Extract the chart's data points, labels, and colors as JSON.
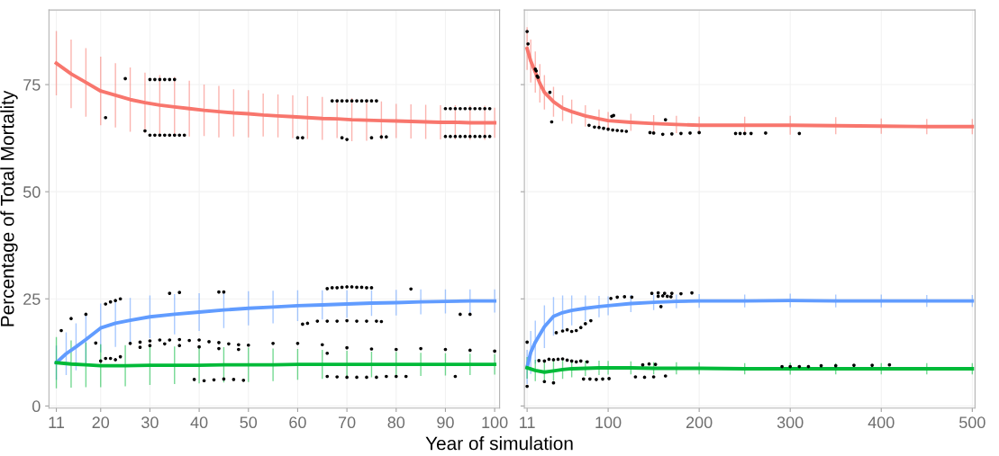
{
  "chart_data": [
    {
      "type": "line",
      "ylabel": "Percentage of Total Mortality",
      "xlabel": "Year of simulation",
      "xlim": [
        9.5,
        101
      ],
      "ylim": [
        -0.5,
        92.4
      ],
      "xticks": [
        11,
        20,
        30,
        40,
        50,
        60,
        70,
        80,
        90,
        100
      ],
      "yticks": [
        0,
        25,
        50,
        75
      ],
      "grid": true,
      "marker": "none",
      "line_style": "solid",
      "series": [
        {
          "color": "#f8766d",
          "x": [
            11,
            14,
            17,
            20,
            23,
            26,
            29,
            32,
            35,
            38,
            41,
            44,
            47,
            50,
            53,
            56,
            59,
            62,
            65,
            68,
            71,
            74,
            77,
            80,
            83,
            86,
            89,
            92,
            95,
            98,
            100
          ],
          "values": [
            80,
            77.5,
            75.5,
            73.5,
            72.5,
            71.5,
            70.8,
            70.2,
            69.8,
            69.4,
            69,
            68.7,
            68.4,
            68.2,
            67.9,
            67.7,
            67.5,
            67.3,
            67.1,
            67,
            66.8,
            66.7,
            66.6,
            66.5,
            66.4,
            66.3,
            66.2,
            66.2,
            66.1,
            66.1,
            66.1
          ],
          "errors": [
            7.5,
            8,
            8,
            8,
            7.5,
            7.5,
            7,
            7,
            7,
            6.5,
            6,
            6,
            5.5,
            5.5,
            5,
            5,
            5,
            5,
            5,
            4.5,
            5,
            4.8,
            4.5,
            4,
            4,
            4,
            4,
            4,
            4,
            4,
            3.5
          ]
        },
        {
          "color": "#619cff",
          "x": [
            11,
            13,
            15,
            17,
            20,
            23,
            26,
            30,
            35,
            40,
            45,
            50,
            55,
            60,
            65,
            70,
            75,
            80,
            85,
            90,
            95,
            100
          ],
          "values": [
            10.1,
            12.2,
            13.8,
            15.5,
            18.2,
            19.3,
            20,
            20.8,
            21.4,
            21.9,
            22.4,
            22.8,
            23.1,
            23.4,
            23.6,
            23.8,
            24,
            24.1,
            24.3,
            24.4,
            24.5,
            24.5
          ],
          "errors": [
            4,
            5,
            5.5,
            5.7,
            5.7,
            5.5,
            5.2,
            5,
            4.7,
            4.4,
            4.2,
            4,
            3.8,
            3.6,
            3.4,
            3.2,
            3,
            3,
            2.9,
            2.8,
            2.7,
            2.7
          ]
        },
        {
          "color": "#00ba38",
          "x": [
            11,
            14,
            17,
            20,
            25,
            30,
            35,
            40,
            45,
            50,
            55,
            60,
            65,
            70,
            75,
            80,
            85,
            90,
            95,
            100
          ],
          "values": [
            10.1,
            9.8,
            9.6,
            9.4,
            9.4,
            9.5,
            9.5,
            9.5,
            9.6,
            9.6,
            9.6,
            9.7,
            9.7,
            9.7,
            9.7,
            9.7,
            9.7,
            9.7,
            9.7,
            9.7
          ],
          "errors": [
            6,
            5.5,
            5.2,
            5,
            4.8,
            4.6,
            4.4,
            4.2,
            4.1,
            4,
            3.8,
            3.6,
            3.4,
            3.2,
            3,
            2.9,
            2.7,
            2.6,
            2.5,
            2.4
          ]
        },
        {
          "type": "scatter",
          "color": "#000000",
          "x": [
            21,
            25,
            30,
            31,
            32,
            33,
            34,
            35,
            29,
            30,
            31,
            32,
            33,
            34,
            35,
            36,
            37,
            67,
            68,
            69,
            70,
            71,
            72,
            73,
            74,
            75,
            76,
            90,
            91,
            92,
            93,
            94,
            95,
            96,
            97,
            98,
            99,
            90,
            91,
            92,
            93,
            94,
            95,
            96,
            97,
            98,
            99,
            60,
            61,
            69,
            70,
            75,
            77,
            78,
            12,
            14,
            17,
            21,
            22,
            23,
            24,
            34,
            36,
            44,
            45,
            66,
            67,
            68,
            69,
            70,
            71,
            72,
            73,
            74,
            75,
            83,
            61,
            62,
            64,
            66,
            68,
            70,
            72,
            74,
            76,
            77,
            93,
            95,
            26,
            28,
            30,
            32,
            34,
            36,
            38,
            40,
            42,
            44,
            46,
            48,
            50,
            55,
            60,
            65,
            70,
            75,
            80,
            85,
            90,
            95,
            100,
            28,
            30,
            33,
            36,
            40,
            44,
            48,
            20,
            21,
            22,
            23,
            24,
            19,
            39,
            41,
            43,
            45,
            47,
            49,
            66,
            68,
            70,
            72,
            74,
            76,
            78,
            80,
            82,
            92,
            66
          ],
          "values": [
            67.3,
            76.4,
            76.2,
            76.2,
            76.2,
            76.2,
            76.2,
            76.2,
            64.2,
            63.2,
            63.2,
            63.2,
            63.2,
            63.2,
            63.2,
            63.2,
            63.2,
            71.2,
            71.2,
            71.2,
            71.2,
            71.2,
            71.2,
            71.2,
            71.2,
            71.2,
            71.2,
            69.4,
            69.4,
            69.4,
            69.4,
            69.4,
            69.4,
            69.4,
            69.4,
            69.4,
            69.4,
            62.9,
            62.9,
            62.9,
            62.9,
            62.9,
            62.9,
            62.9,
            62.9,
            62.9,
            62.9,
            62.6,
            62.6,
            62.6,
            62.2,
            62.6,
            62.8,
            62.8,
            17.6,
            20.4,
            21.4,
            23.8,
            24.3,
            24.6,
            25,
            26.3,
            26.5,
            26.6,
            26.6,
            27.4,
            27.6,
            27.6,
            27.7,
            27.8,
            27.8,
            27.7,
            27.7,
            27.6,
            27.6,
            27.3,
            19.1,
            19.3,
            19.8,
            19.8,
            19.8,
            19.9,
            19.8,
            19.8,
            19.8,
            19.7,
            21.4,
            21.4,
            14.6,
            14.9,
            15.2,
            15.4,
            15.4,
            15.5,
            15.3,
            15.4,
            15,
            14.8,
            14.5,
            14.3,
            14.2,
            14.6,
            14.6,
            14.3,
            13.6,
            13.3,
            13.2,
            13.4,
            13.2,
            13,
            12.8,
            13.7,
            14.1,
            14.5,
            14.1,
            13.8,
            13.4,
            13.2,
            10.5,
            11.1,
            11.1,
            10.8,
            11.5,
            14.7,
            6.2,
            5.9,
            6.1,
            6.3,
            6.2,
            6,
            6.9,
            6.8,
            6.7,
            6.7,
            6.7,
            6.7,
            6.9,
            6.9,
            6.9,
            6.9,
            12.3
          ]
        }
      ]
    },
    {
      "type": "line",
      "xlim": [
        8,
        503
      ],
      "ylim": [
        -0.5,
        92.4
      ],
      "xticks": [
        11,
        100,
        200,
        300,
        400,
        500
      ],
      "yticks": [
        0,
        25,
        50,
        75
      ],
      "tick_labels": "x",
      "grid": true,
      "marker": "none",
      "line_style": "solid",
      "series": [
        {
          "color": "#f8766d",
          "x": [
            11,
            15,
            20,
            25,
            30,
            40,
            50,
            60,
            75,
            90,
            100,
            125,
            150,
            175,
            200,
            250,
            300,
            350,
            400,
            450,
            500
          ],
          "values": [
            83.4,
            80.5,
            77.9,
            75.3,
            73.2,
            71,
            69.5,
            68.7,
            67.7,
            67,
            66.6,
            66.2,
            65.9,
            65.7,
            65.5,
            65.5,
            65.5,
            65.4,
            65.3,
            65.2,
            65.2
          ],
          "errors": [
            5,
            5,
            4.8,
            4.5,
            4,
            3.5,
            3,
            2.8,
            2.5,
            2.2,
            2,
            2,
            2,
            2,
            2,
            2,
            2.2,
            2,
            1.8,
            1.8,
            1.8
          ]
        },
        {
          "color": "#619cff",
          "x": [
            11,
            15,
            20,
            30,
            40,
            50,
            60,
            75,
            90,
            100,
            125,
            150,
            175,
            200,
            250,
            300,
            350,
            400,
            450,
            500
          ],
          "values": [
            9.1,
            12.5,
            14.9,
            18.5,
            20.9,
            21.8,
            22.3,
            22.8,
            23.2,
            23.4,
            23.9,
            24.2,
            24.4,
            24.5,
            24.5,
            24.6,
            24.5,
            24.5,
            24.5,
            24.5
          ],
          "errors": [
            4,
            5,
            5,
            5,
            4.5,
            4,
            3.5,
            3,
            2.5,
            2.2,
            2,
            1.8,
            1.6,
            1.6,
            1.5,
            1.6,
            1.5,
            1.5,
            1.4,
            1.4
          ]
        },
        {
          "color": "#00ba38",
          "x": [
            11,
            20,
            30,
            40,
            50,
            60,
            75,
            90,
            100,
            125,
            150,
            175,
            200,
            250,
            300,
            350,
            400,
            450,
            500
          ],
          "values": [
            8.9,
            8.3,
            7.9,
            8.2,
            8.5,
            8.7,
            8.8,
            8.9,
            8.9,
            8.9,
            8.8,
            8.8,
            8.8,
            8.7,
            8.7,
            8.7,
            8.7,
            8.7,
            8.7
          ],
          "errors": [
            2.5,
            2.5,
            2.5,
            2.3,
            2.2,
            2,
            1.8,
            1.7,
            1.6,
            1.5,
            1.4,
            1.4,
            1.4,
            1.3,
            1.4,
            1.3,
            1.3,
            1.3,
            1.3
          ]
        },
        {
          "type": "scatter",
          "color": "#000000",
          "x": [
            11,
            12,
            20,
            21,
            22,
            23,
            36,
            38,
            79,
            85,
            90,
            95,
            100,
            105,
            110,
            115,
            120,
            104,
            106,
            146,
            150,
            160,
            170,
            180,
            190,
            200,
            163,
            240,
            245,
            250,
            257,
            273,
            310,
            11,
            43,
            50,
            55,
            60,
            65,
            70,
            75,
            81,
            103,
            110,
            118,
            126,
            148,
            155,
            162,
            170,
            180,
            192,
            155,
            160,
            165,
            169,
            158,
            24,
            30,
            35,
            40,
            45,
            50,
            55,
            60,
            65,
            70,
            77,
            73,
            80,
            87,
            94,
            101,
            130,
            140,
            150,
            163,
            138,
            145,
            152,
            291,
            300,
            310,
            320,
            334,
            350,
            370,
            390,
            409,
            11,
            40,
            30
          ],
          "values": [
            87.4,
            84.5,
            78.6,
            78.2,
            77,
            76.7,
            73.2,
            66.3,
            65.5,
            65.1,
            65,
            64.8,
            64.6,
            64.4,
            64.3,
            64.2,
            64.1,
            67.6,
            67.8,
            63.8,
            63.7,
            63.4,
            63.5,
            63.6,
            63.7,
            63.8,
            66.8,
            63.6,
            63.6,
            63.6,
            63.6,
            63.7,
            63.6,
            14.9,
            17.1,
            17.5,
            17.8,
            17.4,
            17.6,
            18.3,
            19.2,
            19.9,
            25.1,
            25.4,
            25.5,
            25.4,
            26.3,
            26.4,
            26.3,
            26.3,
            26.2,
            26.4,
            25.6,
            25.7,
            25.6,
            25.5,
            23.2,
            10.6,
            10.5,
            10.9,
            10.8,
            10.9,
            11,
            10.7,
            10.5,
            10.3,
            10.5,
            10.3,
            6.3,
            6.3,
            6.2,
            6.3,
            6.4,
            6.8,
            6.7,
            6.8,
            7,
            9.6,
            9.8,
            9.7,
            9.2,
            9.2,
            9.2,
            9.2,
            9.4,
            9.4,
            9.5,
            9.5,
            9.6,
            4.6,
            5.4,
            5.7
          ]
        }
      ]
    }
  ]
}
